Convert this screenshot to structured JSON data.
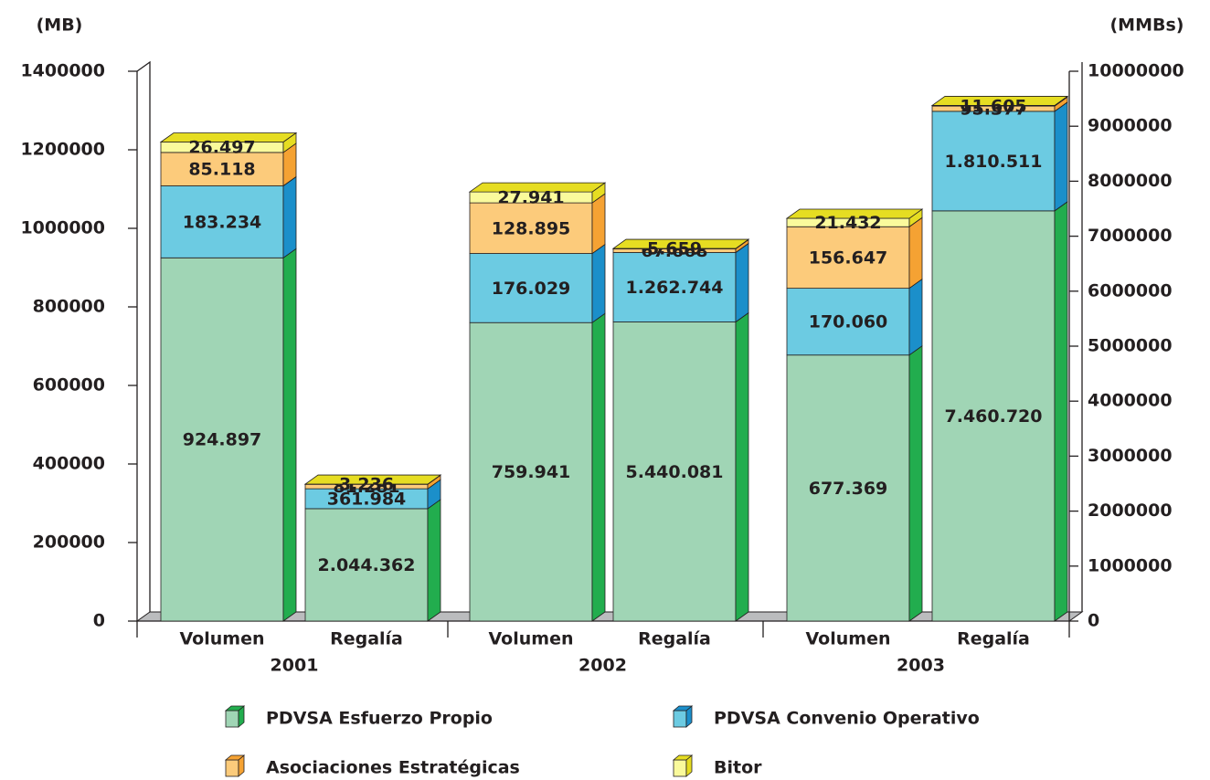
{
  "chart_data": {
    "type": "stacked_bar_3d",
    "y_label": "(MB)",
    "y2_label": "(MMBs)",
    "categories": [
      "Volumen",
      "Regalía",
      "Volumen",
      "Regalía",
      "Volumen",
      "Regalía"
    ],
    "groups": [
      "2001",
      "2002",
      "2003"
    ],
    "bar_axis": [
      "y",
      "y2",
      "y",
      "y2",
      "y",
      "y2"
    ],
    "series": [
      {
        "name": "PDVSA Esfuerzo Propio",
        "color": "#a0d5b5",
        "side_color": "#22ad4e",
        "values": [
          924897,
          2044362,
          759941,
          5440081,
          677369,
          7460720
        ],
        "value_labels": [
          "924.897",
          "2.044.362",
          "759.941",
          "5.440.081",
          "677.369",
          "7.460.720"
        ]
      },
      {
        "name": "PDVSA Convenio Operativo",
        "color": "#6ccbe2",
        "side_color": "#1b8fca",
        "values": [
          183234,
          361984,
          176029,
          1262744,
          170060,
          1810511
        ],
        "value_labels": [
          "183.234",
          "361.984",
          "176.029",
          "1.262.744",
          "170.060",
          "1.810.511"
        ]
      },
      {
        "name": "Asociaciones Estratégicas",
        "color": "#fccb7b",
        "side_color": "#f5a233",
        "values": [
          85118,
          81281,
          128895,
          67668,
          156647,
          95377
        ],
        "value_labels": [
          "85.118",
          "81.281",
          "128.895",
          "67.668",
          "156.647",
          "95.377"
        ]
      },
      {
        "name": "Bitor",
        "color": "#fafa9c",
        "side_color": "#e6dd22",
        "values": [
          26497,
          3236,
          27941,
          5659,
          21432,
          11605
        ],
        "value_labels": [
          "26.497",
          "3.236",
          "27.941",
          "5.659",
          "21.432",
          "11.605"
        ]
      }
    ],
    "ylim": [
      0,
      1400000
    ],
    "yticks": [
      0,
      200000,
      400000,
      600000,
      800000,
      1000000,
      1200000,
      1400000
    ],
    "y2lim": [
      0,
      10000000
    ],
    "y2ticks": [
      0,
      1000000,
      2000000,
      3000000,
      4000000,
      5000000,
      6000000,
      7000000,
      8000000,
      9000000,
      10000000
    ]
  }
}
